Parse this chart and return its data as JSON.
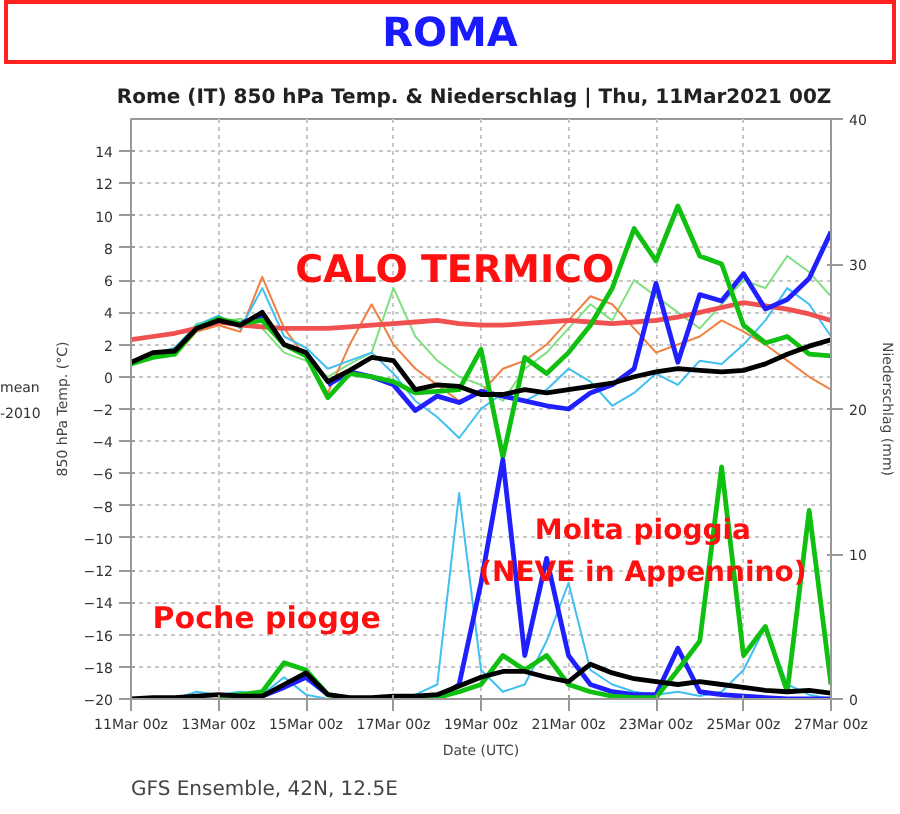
{
  "chart_data": {
    "type": "line",
    "title": "ROMA",
    "subtitle": "Rome  (IT)  850 hPa Temp. & Niederschlag | Thu, 11Mar2021 00Z",
    "xlabel": "Date (UTC)",
    "ylabel": "850 hPa Temp. (°C)",
    "y2label": "Niederschlag (mm)",
    "annotations": [
      "CALO TERMICO",
      "Molta pioggia\n(NEVE in Appennino)",
      "Poche piogge",
      "GFS Ensemble, 42N, 12.5E",
      "mean",
      "-2010"
    ],
    "x": [
      "2021-03-11T00:00",
      "2021-03-11T12:00",
      "2021-03-12T00:00",
      "2021-03-12T12:00",
      "2021-03-13T00:00",
      "2021-03-13T12:00",
      "2021-03-14T00:00",
      "2021-03-14T12:00",
      "2021-03-15T00:00",
      "2021-03-15T12:00",
      "2021-03-16T00:00",
      "2021-03-16T12:00",
      "2021-03-17T00:00",
      "2021-03-17T12:00",
      "2021-03-18T00:00",
      "2021-03-18T12:00",
      "2021-03-19T00:00",
      "2021-03-19T12:00",
      "2021-03-20T00:00",
      "2021-03-20T12:00",
      "2021-03-21T00:00",
      "2021-03-21T12:00",
      "2021-03-22T00:00",
      "2021-03-22T12:00",
      "2021-03-23T00:00",
      "2021-03-23T12:00",
      "2021-03-24T00:00",
      "2021-03-24T12:00",
      "2021-03-25T00:00",
      "2021-03-25T12:00",
      "2021-03-26T00:00",
      "2021-03-26T12:00",
      "2021-03-27T00:00"
    ],
    "series": [
      {
        "color": "#80e080",
        "values": [
          0.9,
          1.3,
          1.7,
          3.3,
          3.4,
          3.6,
          3.0,
          1.5,
          1.0,
          0.0,
          0.8,
          1.5,
          5.5,
          2.5,
          1.0,
          0.0,
          -0.5,
          -1.5,
          0.5,
          1.5,
          3.0,
          4.5,
          3.5,
          6.0,
          5.0,
          4.0,
          3.0,
          4.5,
          6.0,
          5.5,
          7.5,
          6.5,
          5.0
        ]
      },
      {
        "color": "#f08040",
        "values": [
          null,
          null,
          1.3,
          2.8,
          3.2,
          2.8,
          6.2,
          3.0,
          1.2,
          -1.0,
          2.0,
          4.5,
          2.0,
          0.5,
          -0.5,
          -1.5,
          -1.0,
          0.5,
          1.0,
          2.0,
          3.5,
          5.0,
          4.5,
          3.0,
          1.5,
          2.0,
          2.5,
          3.5,
          2.8,
          2.0,
          1.0,
          0.0,
          -0.8
        ]
      },
      {
        "color": "#40c0f0",
        "values": [
          1.0,
          1.4,
          1.8,
          3.2,
          3.8,
          3.0,
          5.5,
          2.5,
          1.8,
          0.5,
          1.0,
          1.5,
          0.2,
          -1.5,
          -2.5,
          -3.8,
          -2.0,
          -1.0,
          -1.5,
          -0.8,
          0.5,
          -0.3,
          -1.8,
          -1.0,
          0.2,
          -0.5,
          1.0,
          0.8,
          2.0,
          3.5,
          5.5,
          4.5,
          2.5
        ]
      },
      {
        "color": "#40c0f0",
        "axis": "y2",
        "values": [
          0,
          0,
          0,
          0.5,
          0.3,
          0.5,
          0.3,
          1.5,
          0.3,
          0,
          0,
          0,
          0,
          0.3,
          1,
          14.2,
          2,
          0.5,
          1,
          4,
          8,
          2,
          1,
          0.5,
          0.3,
          0.5,
          0.2,
          0.5,
          2,
          5,
          1,
          0.3,
          0
        ]
      },
      {
        "color": "#f05050",
        "values": [
          2.3,
          2.5,
          2.7,
          3.0,
          3.4,
          3.2,
          3.1,
          3.0,
          3.0,
          3.0,
          3.1,
          3.2,
          3.3,
          3.4,
          3.5,
          3.3,
          3.2,
          3.2,
          3.3,
          3.4,
          3.5,
          3.4,
          3.3,
          3.4,
          3.5,
          3.7,
          4.0,
          4.3,
          4.6,
          4.4,
          4.2,
          3.9,
          3.5
        ]
      },
      {
        "color": "#2020ff",
        "values": [
          null,
          null,
          null,
          null,
          null,
          3.3,
          3.8,
          null,
          null,
          -0.5,
          0.3,
          0.0,
          -0.5,
          -2.1,
          -1.2,
          -1.6,
          -0.9,
          -1.2,
          -1.5,
          -1.8,
          -2.0,
          -1.0,
          -0.5,
          0.5,
          5.8,
          0.9,
          5.1,
          4.7,
          6.4,
          4.2,
          4.8,
          6.1,
          9.0
        ]
      },
      {
        "color": "#10c010",
        "values": [
          0.8,
          1.2,
          1.4,
          3.0,
          3.6,
          3.3,
          3.5,
          2.0,
          1.3,
          -1.3,
          0.2,
          0.0,
          -0.3,
          -1.0,
          -0.9,
          -0.8,
          1.7,
          -5.0,
          1.2,
          0.2,
          1.5,
          3.2,
          5.5,
          9.2,
          7.2,
          10.6,
          7.5,
          7.0,
          3.2,
          2.1,
          2.5,
          1.4,
          1.3
        ]
      },
      {
        "color": "#000000",
        "values": [
          0.9,
          1.5,
          1.6,
          3.0,
          3.5,
          3.2,
          4.0,
          2.0,
          1.5,
          -0.3,
          0.4,
          1.2,
          1.0,
          -0.8,
          -0.5,
          -0.6,
          -1.1,
          -1.1,
          -0.8,
          -1.0,
          -0.8,
          -0.6,
          -0.4,
          0.0,
          0.3,
          0.5,
          0.4,
          0.3,
          0.4,
          0.8,
          1.4,
          1.9,
          2.3
        ]
      },
      {
        "color": "#2020ff",
        "axis": "y2",
        "values": [
          null,
          null,
          null,
          null,
          null,
          null,
          0.2,
          0.8,
          1.5,
          0.3,
          null,
          null,
          null,
          null,
          0,
          1,
          8,
          16.5,
          3,
          9.7,
          3,
          1,
          0.5,
          0.3,
          0.3,
          3.5,
          0.5,
          0.3,
          0.2,
          0.1,
          0,
          0,
          0
        ]
      },
      {
        "color": "#10c010",
        "axis": "y2",
        "values": [
          null,
          null,
          null,
          null,
          0.2,
          0.3,
          0.5,
          2.5,
          2.0,
          0.3,
          0,
          0,
          0.1,
          0.2,
          0.1,
          0.5,
          1,
          3,
          2,
          3,
          1,
          0.5,
          0.2,
          0.1,
          0.1,
          2,
          4,
          16,
          3,
          5,
          0.5,
          13,
          1
        ]
      },
      {
        "color": "#000000",
        "axis": "y2",
        "values": [
          0,
          0.1,
          0.1,
          0.2,
          0.3,
          0.2,
          0.2,
          1.0,
          1.8,
          0.3,
          0.1,
          0.1,
          0.2,
          0.2,
          0.3,
          0.9,
          1.5,
          1.9,
          1.9,
          1.5,
          1.2,
          2.4,
          1.8,
          1.4,
          1.2,
          1.0,
          1.2,
          1.0,
          0.8,
          0.6,
          0.5,
          0.6,
          0.4
        ]
      }
    ],
    "xlim": [
      "2021-03-11T00:00",
      "2021-03-27T00:00"
    ],
    "xticks": [
      {
        "value": "2021-03-11T00:00",
        "label": "11Mar 00z"
      },
      {
        "value": "2021-03-13T00:00",
        "label": "13Mar 00z"
      },
      {
        "value": "2021-03-15T00:00",
        "label": "15Mar 00z"
      },
      {
        "value": "2021-03-17T00:00",
        "label": "17Mar 00z"
      },
      {
        "value": "2021-03-19T00:00",
        "label": "19Mar 00z"
      },
      {
        "value": "2021-03-21T00:00",
        "label": "21Mar 00z"
      },
      {
        "value": "2021-03-23T00:00",
        "label": "23Mar 00z"
      },
      {
        "value": "2021-03-25T00:00",
        "label": "25Mar 00z"
      },
      {
        "value": "2021-03-27T00:00",
        "label": "27Mar 00z"
      }
    ],
    "ylim": [
      -20,
      16
    ],
    "yticks": [
      -20,
      -18,
      -16,
      -14,
      -12,
      -10,
      -8,
      -6,
      -4,
      -2,
      0,
      2,
      4,
      6,
      8,
      10,
      12,
      14
    ],
    "y2lim": [
      0,
      40
    ],
    "y2ticks": [
      0,
      10,
      20,
      30,
      40
    ],
    "grid": true
  }
}
